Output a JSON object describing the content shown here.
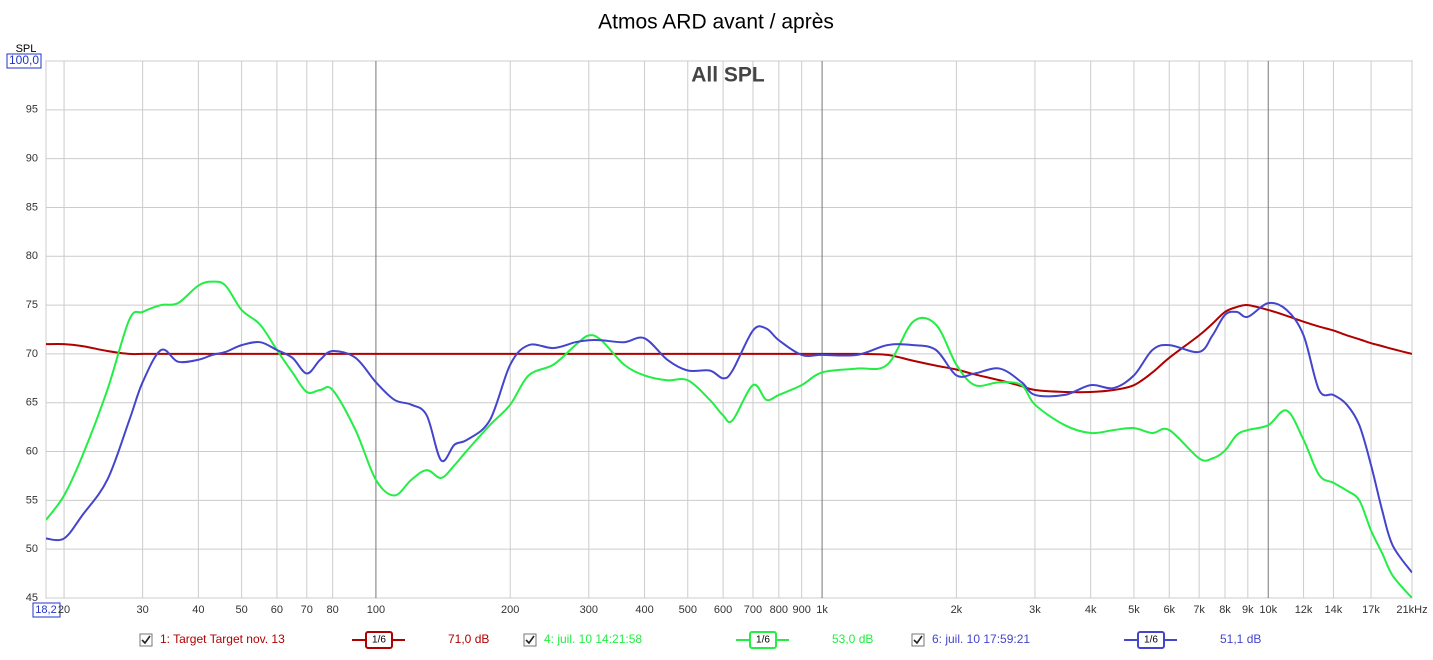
{
  "chart_data": {
    "type": "line",
    "title": "Atmos ARD avant / après",
    "annotation": "All SPL",
    "ylabel": "SPL",
    "log_x": true,
    "grid": true,
    "xlim": [
      18.22,
      21000
    ],
    "ylim": [
      45,
      100
    ],
    "yticks": [
      45,
      50,
      55,
      60,
      65,
      70,
      75,
      80,
      85,
      90,
      95,
      {
        "value": 100,
        "label": "100,0"
      }
    ],
    "xticks": [
      {
        "value": 18.22,
        "label": "18,2"
      },
      20,
      30,
      40,
      50,
      60,
      70,
      80,
      100,
      200,
      300,
      400,
      500,
      600,
      700,
      800,
      900,
      {
        "value": 1000,
        "label": "1k"
      },
      {
        "value": 2000,
        "label": "2k"
      },
      {
        "value": 3000,
        "label": "3k"
      },
      {
        "value": 4000,
        "label": "4k"
      },
      {
        "value": 5000,
        "label": "5k"
      },
      {
        "value": 6000,
        "label": "6k"
      },
      {
        "value": 7000,
        "label": "7k"
      },
      {
        "value": 8000,
        "label": "8k"
      },
      {
        "value": 9000,
        "label": "9k"
      },
      {
        "value": 10000,
        "label": "10k"
      },
      {
        "value": 12000,
        "label": "12k"
      },
      {
        "value": 14000,
        "label": "14k"
      },
      {
        "value": 17000,
        "label": "17k"
      },
      {
        "value": 21000,
        "label": "21kHz"
      }
    ],
    "x": [
      18.22,
      20,
      22,
      25,
      28,
      30,
      33,
      36,
      40,
      43,
      46,
      50,
      55,
      60,
      65,
      70,
      75,
      80,
      90,
      100,
      110,
      120,
      130,
      140,
      150,
      160,
      180,
      200,
      220,
      250,
      280,
      300,
      320,
      360,
      400,
      450,
      500,
      560,
      600,
      630,
      700,
      750,
      800,
      900,
      1000,
      1200,
      1400,
      1600,
      1800,
      2000,
      2200,
      2500,
      2800,
      3000,
      3500,
      4000,
      4500,
      5000,
      5500,
      6000,
      7000,
      7500,
      8000,
      8500,
      9000,
      10000,
      11000,
      12000,
      13000,
      14000,
      15000,
      16000,
      17000,
      18000,
      19000,
      21000
    ],
    "series": [
      {
        "name": "1: Target Target nov. 13",
        "color": "#b00000",
        "smoothing": "1/6",
        "cursor_label": "71,0 dB",
        "values": [
          71.0,
          71.0,
          70.8,
          70.3,
          70.0,
          70,
          70,
          70,
          70,
          70,
          70,
          70,
          70,
          70,
          70,
          70,
          70,
          70,
          70,
          70,
          70,
          70,
          70,
          70,
          70,
          70,
          70,
          70,
          70,
          70,
          70,
          70,
          70,
          70,
          70,
          70,
          70,
          70,
          70,
          70,
          70,
          70,
          70,
          70,
          70,
          70,
          69.9,
          69.3,
          68.8,
          68.4,
          67.9,
          67.3,
          66.7,
          66.3,
          66.1,
          66.1,
          66.3,
          66.8,
          68.1,
          69.6,
          71.9,
          73.1,
          74.3,
          74.8,
          75.0,
          74.5,
          73.9,
          73.3,
          72.8,
          72.4,
          71.9,
          71.5,
          71.1,
          70.8,
          70.5,
          70.0
        ]
      },
      {
        "name": "4: juil. 10 14:21:58",
        "color": "#22ee44",
        "smoothing": "1/6",
        "cursor_label": "53,0 dB",
        "values": [
          53.0,
          55.5,
          59.6,
          66.3,
          73.5,
          74.3,
          75.0,
          75.2,
          77.0,
          77.4,
          77.0,
          74.5,
          73.0,
          70.4,
          68.1,
          66.1,
          66.3,
          66.3,
          62.2,
          57.1,
          55.5,
          57.1,
          58.1,
          57.3,
          58.6,
          60.1,
          62.7,
          64.8,
          67.8,
          68.9,
          70.9,
          71.9,
          71.4,
          68.9,
          67.8,
          67.3,
          67.3,
          65.3,
          63.7,
          63.2,
          66.8,
          65.3,
          65.8,
          66.8,
          68.1,
          68.5,
          68.9,
          73.3,
          73.0,
          68.9,
          66.8,
          67.1,
          66.8,
          64.8,
          62.7,
          61.9,
          62.2,
          62.4,
          61.9,
          62.2,
          59.3,
          59.3,
          60.1,
          61.7,
          62.2,
          62.7,
          64.2,
          61.2,
          57.6,
          56.8,
          56.0,
          55.0,
          51.9,
          49.6,
          47.3,
          45.0
        ]
      },
      {
        "name": "6: juil. 10 17:59:21",
        "color": "#4444cc",
        "smoothing": "1/6",
        "cursor_label": "51,1 dB",
        "values": [
          51.1,
          51.1,
          53.5,
          57.1,
          63.2,
          67.1,
          70.4,
          69.2,
          69.4,
          69.9,
          70.2,
          70.9,
          71.2,
          70.4,
          69.6,
          68.0,
          69.4,
          70.3,
          69.6,
          67.1,
          65.3,
          64.8,
          63.7,
          59.1,
          60.7,
          61.2,
          63.2,
          68.9,
          70.9,
          70.6,
          71.2,
          71.4,
          71.4,
          71.2,
          71.6,
          69.4,
          68.3,
          68.3,
          67.5,
          68.3,
          72.4,
          72.6,
          71.4,
          69.9,
          69.9,
          69.9,
          70.9,
          70.9,
          70.4,
          67.8,
          68.0,
          68.5,
          67.1,
          65.8,
          65.8,
          66.8,
          66.5,
          67.8,
          70.4,
          70.9,
          70.2,
          71.9,
          74.0,
          74.3,
          73.8,
          75.2,
          74.5,
          71.9,
          66.3,
          65.8,
          64.8,
          62.7,
          58.6,
          54.0,
          50.4,
          47.6
        ]
      }
    ]
  }
}
